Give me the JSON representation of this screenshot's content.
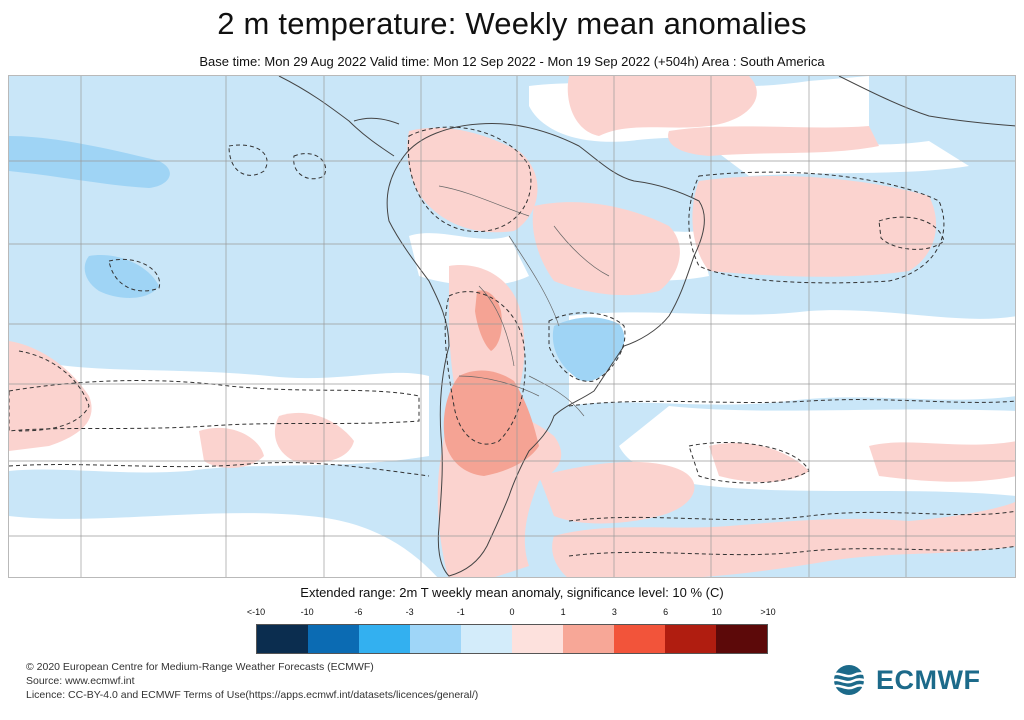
{
  "header": {
    "title": "2 m temperature: Weekly mean anomalies",
    "subtitle": "Base time: Mon 29 Aug 2022 Valid time: Mon 12 Sep 2022 - Mon 19 Sep 2022 (+504h) Area : South America"
  },
  "map": {
    "area": "South America",
    "colors": {
      "ocean_cool": "#c9e6f8",
      "neutral": "#ffffff",
      "warm_light": "#fbd3cf",
      "warm_medium": "#f5a394",
      "cool_medium": "#9fd4f5",
      "contour": "#333333",
      "coast": "#444444",
      "grid": "#9a9a9a"
    }
  },
  "legend": {
    "title": "Extended range: 2m T weekly mean anomaly, significance level: 10 % (C)",
    "ticks": [
      "<-10",
      "-10",
      "-6",
      "-3",
      "-1",
      "0",
      "1",
      "3",
      "6",
      "10",
      ">10"
    ],
    "colors": [
      "#0b2d4f",
      "#0b6bb3",
      "#33b0f0",
      "#9fd6f8",
      "#d3ecfa",
      "#fde1dd",
      "#f7a797",
      "#f2543a",
      "#b01d10",
      "#5c0909"
    ]
  },
  "credits": {
    "line1": "© 2020 European Centre for Medium-Range Weather Forecasts (ECMWF)",
    "line2": "Source: www.ecmwf.int",
    "line3": "Licence: CC-BY-4.0 and ECMWF Terms of Use(https://apps.ecmwf.int/datasets/licences/general/)"
  },
  "logo": {
    "text": "ECMWF"
  }
}
